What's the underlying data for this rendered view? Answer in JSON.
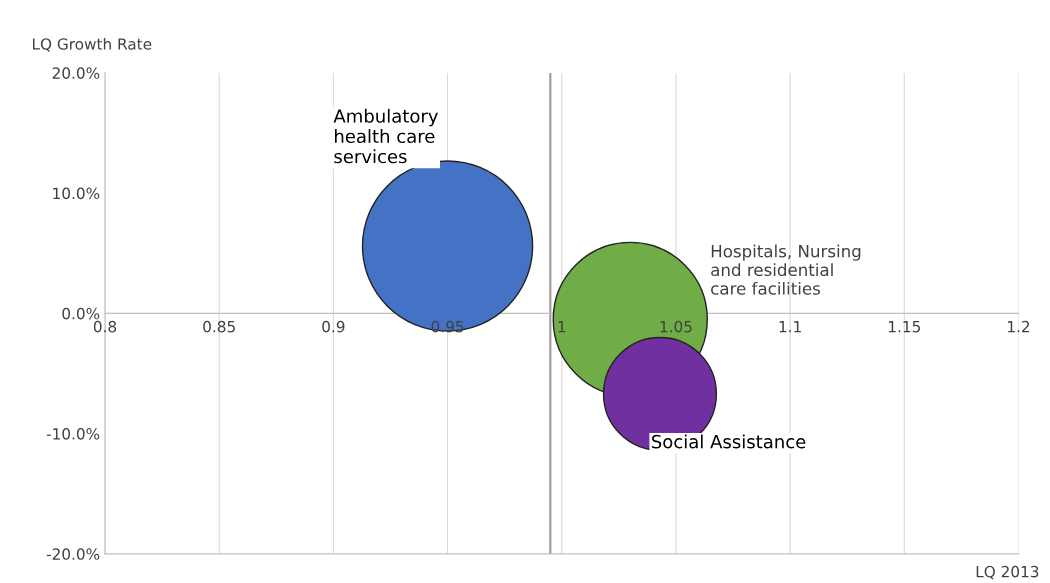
{
  "chart_data": {
    "type": "bubble",
    "xlabel": "LQ 2013",
    "ylabel": "LQ Growth Rate",
    "series": [
      {
        "name": "Ambulatory\nhealth care\nservices",
        "color": "#4472c4",
        "x": [
          0.95
        ],
        "values": [
          5.6
        ],
        "sizes": [
          1
        ]
      },
      {
        "name": "Hospitals, Nursing\nand residential\ncare facilities",
        "color": "#70ad47",
        "x": [
          1.03
        ],
        "values": [
          -0.5
        ],
        "sizes": [
          0.82
        ]
      },
      {
        "name": "Social Assistance",
        "color": "#7030a0",
        "x": [
          1.043
        ],
        "values": [
          -6.7
        ],
        "sizes": [
          0.44
        ]
      }
    ],
    "xlim": [
      0.8,
      1.2
    ],
    "xticks": [
      0.8,
      0.85,
      0.9,
      0.95,
      1,
      1.05,
      1.1,
      1.15,
      1.2
    ],
    "ylim": [
      -20,
      20
    ],
    "yticks": [
      {
        "value": -20,
        "label": "-20.0%"
      },
      {
        "value": -10,
        "label": "-10.0%"
      },
      {
        "value": 0,
        "label": "0.0%"
      },
      {
        "value": 10,
        "label": "10.0%"
      },
      {
        "value": 20,
        "label": "20.0%"
      }
    ],
    "ref_lines": [
      {
        "axis": "x",
        "value": 0.995,
        "color": "#999999"
      }
    ],
    "grid": "x",
    "legend": false
  }
}
